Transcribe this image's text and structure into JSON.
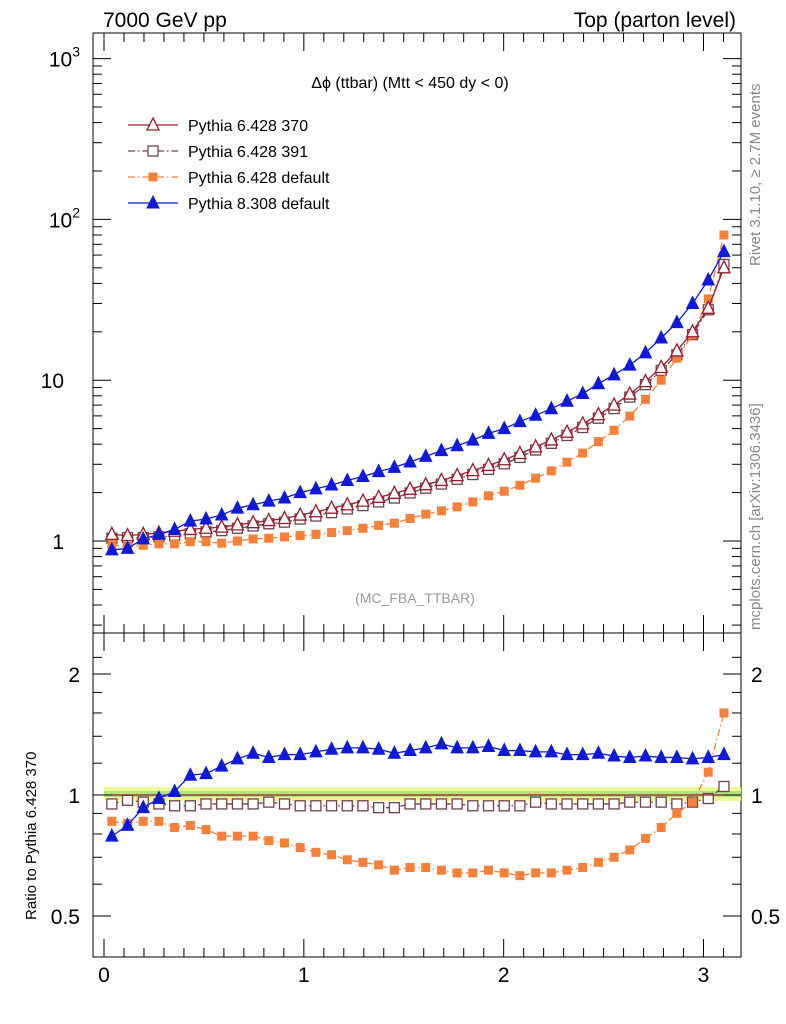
{
  "header": {
    "left": "7000 GeV pp",
    "right": "Top (parton level)"
  },
  "side": {
    "rivet": "Rivet 3.1.10, ≥ 2.7M events",
    "mcplots": "mcplots.cern.ch [arXiv:1306.3436]"
  },
  "chart_data": {
    "type": "line",
    "title": "Δϕ (ttbar) (Mtt < 450 dy < 0)",
    "annotation": "(MC_FBA_TTBAR)",
    "ylabel_ratio": "Ratio to Pythia 6.428 370",
    "y_scale": "log",
    "xlim": [
      -0.05,
      3.2
    ],
    "ylim": [
      0.27,
      1300
    ],
    "ratio_ylim": [
      0.45,
      2.35
    ],
    "x_ticks": [
      "0",
      "1",
      "2",
      "3"
    ],
    "y_ticks_main": [
      "1",
      "10",
      "10^2",
      "10^3"
    ],
    "y_ticks_ratio": [
      "0.5",
      "1",
      "2"
    ],
    "legend_position": "top-left",
    "x": [
      0.0393,
      0.1178,
      0.1963,
      0.2749,
      0.3534,
      0.432,
      0.5105,
      0.589,
      0.6676,
      0.7461,
      0.8247,
      0.9032,
      0.9817,
      1.0603,
      1.1388,
      1.2174,
      1.2959,
      1.3744,
      1.453,
      1.5315,
      1.6101,
      1.6886,
      1.7671,
      1.8457,
      1.9242,
      2.0028,
      2.0813,
      2.1598,
      2.2384,
      2.3169,
      2.3955,
      2.474,
      2.5525,
      2.6311,
      2.7096,
      2.7882,
      2.8667,
      2.9452,
      3.0238,
      3.1023
    ],
    "series": [
      {
        "name": "Pythia 6.428 370",
        "color": "#9a1b2c",
        "marker": "open-triangle",
        "line": "solid",
        "values": [
          1.1,
          1.08,
          1.1,
          1.12,
          1.15,
          1.18,
          1.2,
          1.22,
          1.26,
          1.3,
          1.34,
          1.38,
          1.45,
          1.52,
          1.6,
          1.68,
          1.77,
          1.87,
          1.98,
          2.1,
          2.24,
          2.38,
          2.55,
          2.74,
          2.95,
          3.2,
          3.5,
          3.85,
          4.25,
          4.75,
          5.35,
          6.1,
          7.0,
          8.2,
          9.8,
          12.0,
          15.2,
          20.0,
          28.0,
          50.0
        ],
        "ratio": [
          1.0,
          1.0,
          1.0,
          1.0,
          1.0,
          1.0,
          1.0,
          1.0,
          1.0,
          1.0,
          1.0,
          1.0,
          1.0,
          1.0,
          1.0,
          1.0,
          1.0,
          1.0,
          1.0,
          1.0,
          1.0,
          1.0,
          1.0,
          1.0,
          1.0,
          1.0,
          1.0,
          1.0,
          1.0,
          1.0,
          1.0,
          1.0,
          1.0,
          1.0,
          1.0,
          1.0,
          1.0,
          1.0,
          1.0,
          1.0
        ]
      },
      {
        "name": "Pythia 6.428 391",
        "color": "#704050",
        "marker": "open-square",
        "line": "dash-dot",
        "values": [
          1.04,
          1.05,
          1.05,
          1.06,
          1.08,
          1.11,
          1.14,
          1.16,
          1.2,
          1.24,
          1.28,
          1.31,
          1.37,
          1.43,
          1.5,
          1.58,
          1.66,
          1.75,
          1.85,
          1.99,
          2.13,
          2.26,
          2.42,
          2.59,
          2.79,
          3.02,
          3.31,
          3.68,
          4.05,
          4.53,
          5.08,
          5.8,
          6.66,
          7.85,
          9.38,
          11.5,
          14.4,
          19.2,
          27.4,
          52.5
        ],
        "ratio": [
          0.95,
          0.97,
          0.96,
          0.95,
          0.94,
          0.94,
          0.95,
          0.95,
          0.95,
          0.95,
          0.96,
          0.95,
          0.94,
          0.94,
          0.94,
          0.94,
          0.94,
          0.93,
          0.93,
          0.95,
          0.95,
          0.95,
          0.95,
          0.94,
          0.94,
          0.94,
          0.94,
          0.96,
          0.95,
          0.95,
          0.95,
          0.95,
          0.95,
          0.96,
          0.96,
          0.96,
          0.95,
          0.96,
          0.98,
          1.05
        ]
      },
      {
        "name": "Pythia 6.428 default",
        "color": "#f5803a",
        "marker": "filled-square",
        "line": "dash-dot",
        "values": [
          0.95,
          0.92,
          0.94,
          0.96,
          0.96,
          0.99,
          0.99,
          0.97,
          1.0,
          1.03,
          1.04,
          1.06,
          1.08,
          1.1,
          1.13,
          1.16,
          1.2,
          1.25,
          1.29,
          1.38,
          1.47,
          1.54,
          1.63,
          1.75,
          1.91,
          2.04,
          2.22,
          2.46,
          2.73,
          3.09,
          3.52,
          4.15,
          4.88,
          5.98,
          7.6,
          10.0,
          13.7,
          19.2,
          32.0,
          80.0
        ],
        "ratio": [
          0.86,
          0.85,
          0.86,
          0.86,
          0.83,
          0.84,
          0.82,
          0.79,
          0.79,
          0.79,
          0.77,
          0.76,
          0.74,
          0.72,
          0.71,
          0.69,
          0.68,
          0.67,
          0.65,
          0.66,
          0.66,
          0.65,
          0.64,
          0.64,
          0.65,
          0.64,
          0.63,
          0.64,
          0.64,
          0.65,
          0.66,
          0.68,
          0.7,
          0.73,
          0.78,
          0.83,
          0.9,
          0.96,
          1.14,
          1.6
        ]
      },
      {
        "name": "Pythia 8.308 default",
        "color": "#0f1ad8",
        "marker": "filled-triangle",
        "line": "solid",
        "values": [
          0.88,
          0.9,
          1.03,
          1.1,
          1.18,
          1.33,
          1.37,
          1.45,
          1.6,
          1.68,
          1.77,
          1.85,
          2.0,
          2.11,
          2.23,
          2.38,
          2.52,
          2.7,
          2.87,
          3.1,
          3.36,
          3.65,
          3.91,
          4.24,
          4.67,
          5.0,
          5.53,
          6.05,
          6.65,
          7.4,
          8.26,
          9.5,
          10.8,
          12.4,
          14.8,
          18.3,
          22.8,
          30.0,
          42.0,
          63.0
        ],
        "ratio": [
          0.79,
          0.84,
          0.93,
          0.98,
          1.02,
          1.12,
          1.13,
          1.18,
          1.23,
          1.27,
          1.24,
          1.26,
          1.26,
          1.28,
          1.3,
          1.31,
          1.31,
          1.3,
          1.27,
          1.29,
          1.31,
          1.34,
          1.31,
          1.31,
          1.32,
          1.29,
          1.29,
          1.28,
          1.28,
          1.26,
          1.26,
          1.27,
          1.25,
          1.24,
          1.25,
          1.24,
          1.24,
          1.23,
          1.24,
          1.26
        ]
      }
    ]
  }
}
